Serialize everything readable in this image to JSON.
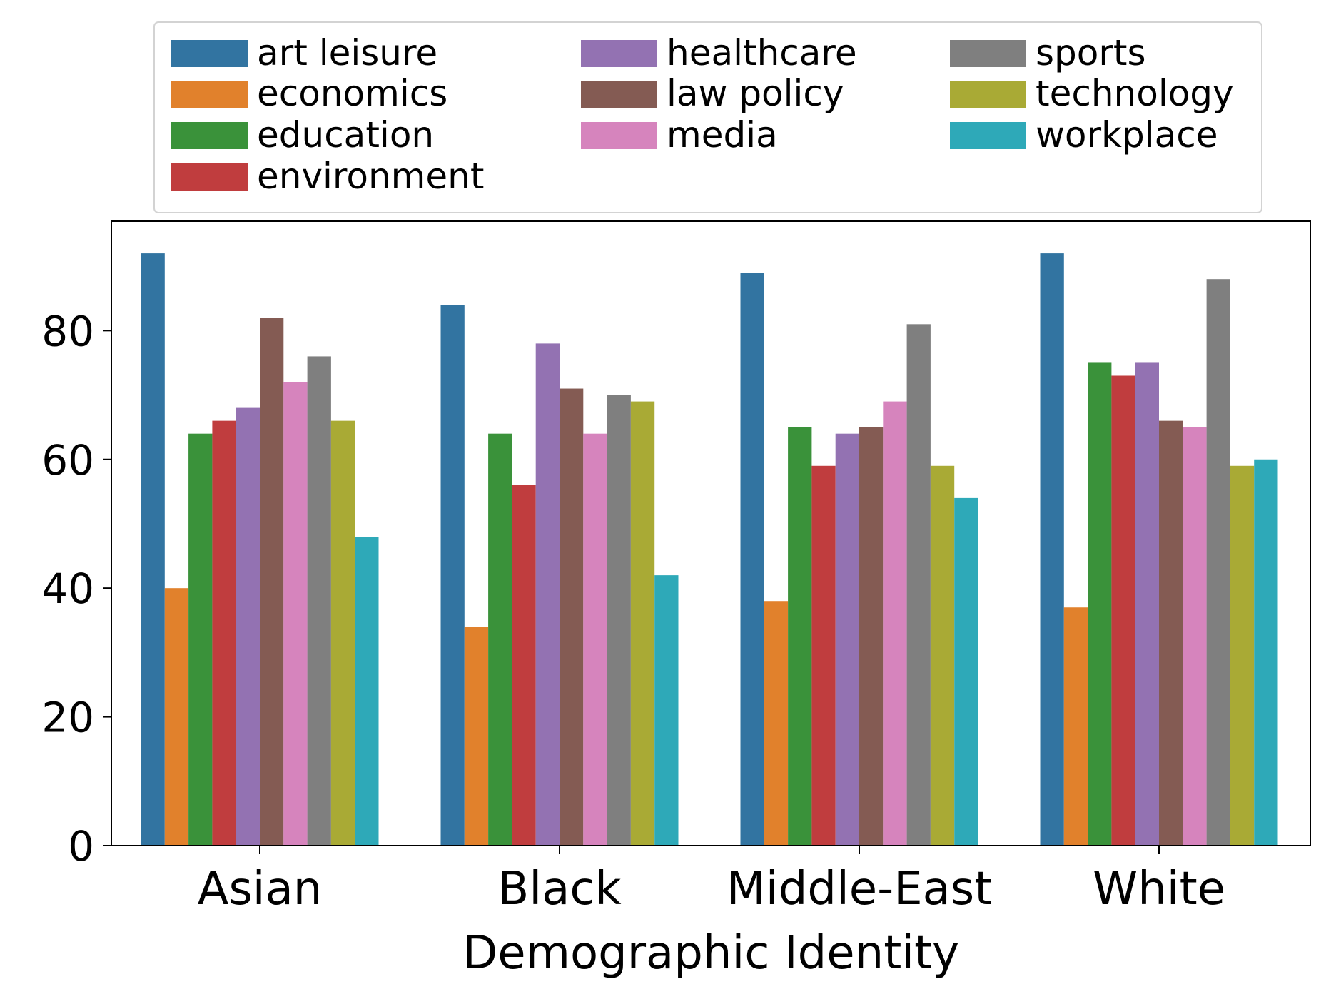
{
  "chart_data": {
    "type": "bar",
    "title": "",
    "xlabel": "Demographic Identity",
    "ylabel": "",
    "ylim": [
      0,
      97
    ],
    "yticks": [
      0,
      20,
      40,
      60,
      80
    ],
    "grid": false,
    "legend_position": "top-center-outside",
    "categories": [
      "Asian",
      "Black",
      "Middle-East",
      "White"
    ],
    "series": [
      {
        "name": "art leisure",
        "color": "#3274a1",
        "values": [
          92,
          84,
          89,
          92
        ]
      },
      {
        "name": "economics",
        "color": "#e1812c",
        "values": [
          40,
          34,
          38,
          37
        ]
      },
      {
        "name": "education",
        "color": "#3a923a",
        "values": [
          64,
          64,
          65,
          75
        ]
      },
      {
        "name": "environment",
        "color": "#c03d3e",
        "values": [
          66,
          56,
          59,
          73
        ]
      },
      {
        "name": "healthcare",
        "color": "#9372b2",
        "values": [
          68,
          78,
          64,
          75
        ]
      },
      {
        "name": "law policy",
        "color": "#845b53",
        "values": [
          82,
          71,
          65,
          66
        ]
      },
      {
        "name": "media",
        "color": "#d684bd",
        "values": [
          72,
          64,
          69,
          65
        ]
      },
      {
        "name": "sports",
        "color": "#7f7f7f",
        "values": [
          76,
          70,
          81,
          88
        ]
      },
      {
        "name": "technology",
        "color": "#a9aa35",
        "values": [
          66,
          69,
          59,
          59
        ]
      },
      {
        "name": "workplace",
        "color": "#2ea9b8",
        "values": [
          48,
          42,
          54,
          60
        ]
      }
    ]
  }
}
